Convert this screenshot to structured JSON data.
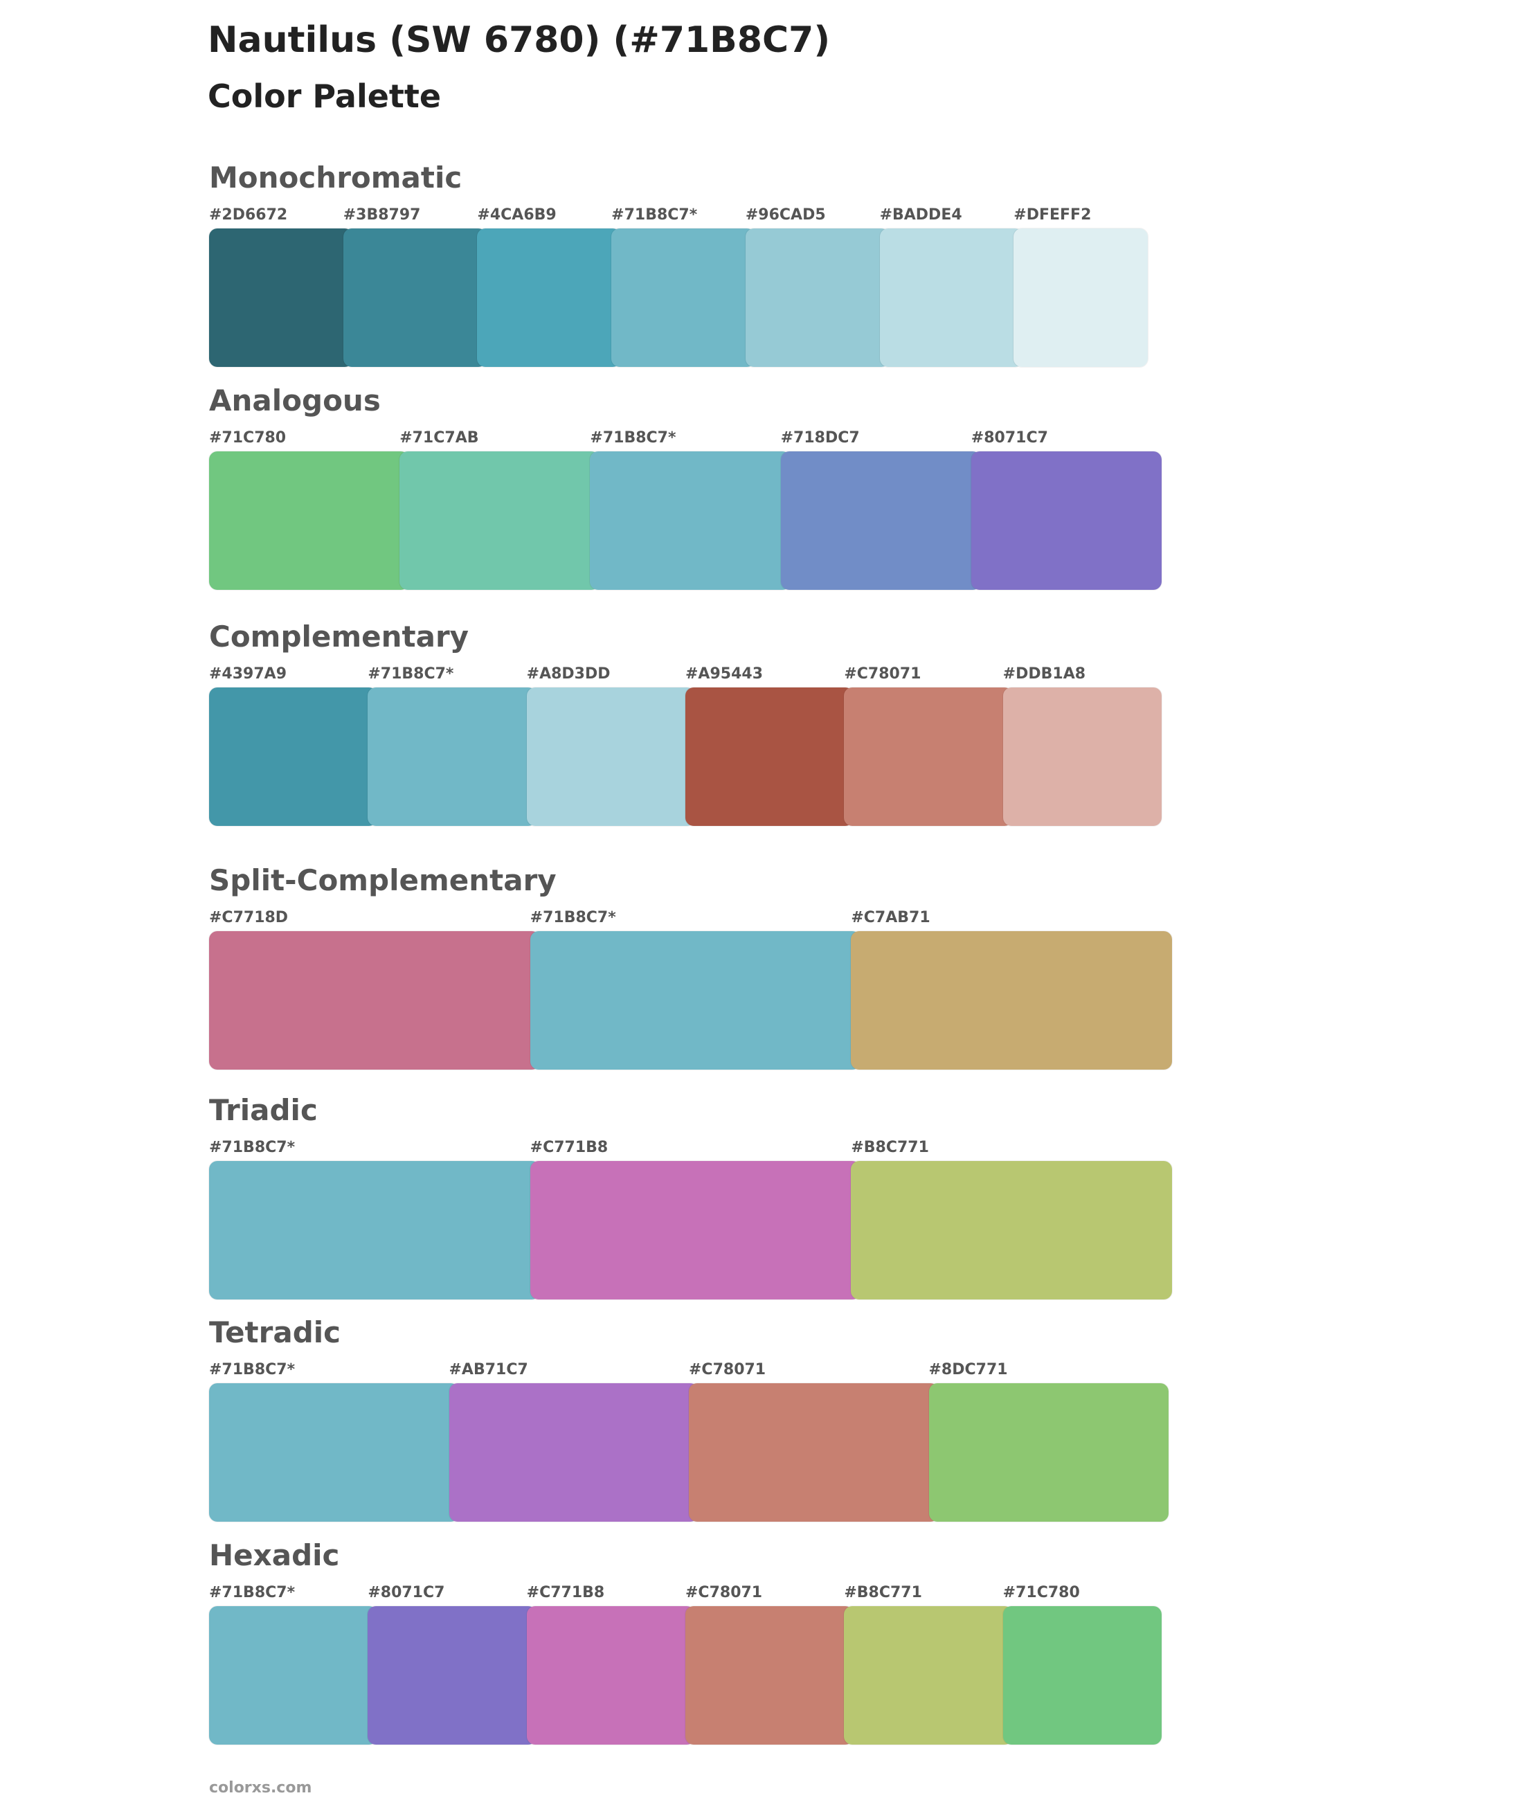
{
  "header": {
    "title": "Nautilus (SW 6780) (#71B8C7)",
    "subtitle": "Color Palette"
  },
  "sections": [
    {
      "name": "Monochromatic",
      "swatches": [
        {
          "label": "#2D6672",
          "color": "#2D6672"
        },
        {
          "label": "#3B8797",
          "color": "#3B8797"
        },
        {
          "label": "#4CA6B9",
          "color": "#4CA6B9"
        },
        {
          "label": "#71B8C7*",
          "color": "#71B8C7"
        },
        {
          "label": "#96CAD5",
          "color": "#96CAD5"
        },
        {
          "label": "#BADDE4",
          "color": "#BADDE4"
        },
        {
          "label": "#DFEFF2",
          "color": "#DFEFF2"
        }
      ]
    },
    {
      "name": "Analogous",
      "swatches": [
        {
          "label": "#71C780",
          "color": "#71C780"
        },
        {
          "label": "#71C7AB",
          "color": "#71C7AB"
        },
        {
          "label": "#71B8C7*",
          "color": "#71B8C7"
        },
        {
          "label": "#718DC7",
          "color": "#718DC7"
        },
        {
          "label": "#8071C7",
          "color": "#8071C7"
        }
      ]
    },
    {
      "name": "Complementary",
      "swatches": [
        {
          "label": "#4397A9",
          "color": "#4397A9"
        },
        {
          "label": "#71B8C7*",
          "color": "#71B8C7"
        },
        {
          "label": "#A8D3DD",
          "color": "#A8D3DD"
        },
        {
          "label": "#A95443",
          "color": "#A95443"
        },
        {
          "label": "#C78071",
          "color": "#C78071"
        },
        {
          "label": "#DDB1A8",
          "color": "#DDB1A8"
        }
      ]
    },
    {
      "name": "Split-Complementary",
      "swatches": [
        {
          "label": "#C7718D",
          "color": "#C7718D"
        },
        {
          "label": "#71B8C7*",
          "color": "#71B8C7"
        },
        {
          "label": "#C7AB71",
          "color": "#C7AB71"
        }
      ]
    },
    {
      "name": "Triadic",
      "swatches": [
        {
          "label": "#71B8C7*",
          "color": "#71B8C7"
        },
        {
          "label": "#C771B8",
          "color": "#C771B8"
        },
        {
          "label": "#B8C771",
          "color": "#B8C771"
        }
      ]
    },
    {
      "name": "Tetradic",
      "swatches": [
        {
          "label": "#71B8C7*",
          "color": "#71B8C7"
        },
        {
          "label": "#AB71C7",
          "color": "#AB71C7"
        },
        {
          "label": "#C78071",
          "color": "#C78071"
        },
        {
          "label": "#8DC771",
          "color": "#8DC771"
        }
      ]
    },
    {
      "name": "Hexadic",
      "swatches": [
        {
          "label": "#71B8C7*",
          "color": "#71B8C7"
        },
        {
          "label": "#8071C7",
          "color": "#8071C7"
        },
        {
          "label": "#C771B8",
          "color": "#C771B8"
        },
        {
          "label": "#C78071",
          "color": "#C78071"
        },
        {
          "label": "#B8C771",
          "color": "#B8C771"
        },
        {
          "label": "#71C780",
          "color": "#71C780"
        }
      ]
    }
  ],
  "footer": "colorxs.com"
}
